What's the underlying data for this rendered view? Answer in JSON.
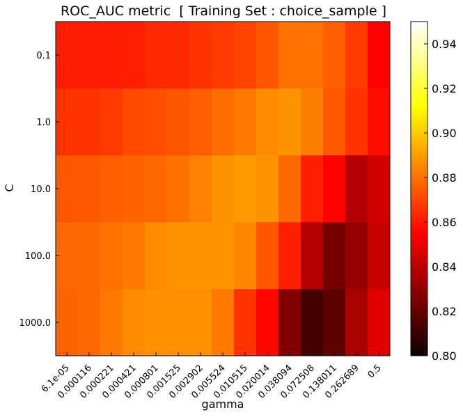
{
  "chart_data": {
    "type": "heatmap",
    "title": "ROC_AUC metric  [ Training Set : choice_sample ]",
    "xlabel": "gamma",
    "ylabel": "C",
    "x_categories": [
      "6.1e-05",
      "0.000116",
      "0.000221",
      "0.000421",
      "0.000801",
      "0.001525",
      "0.002902",
      "0.005524",
      "0.010515",
      "0.020014",
      "0.038094",
      "0.072508",
      "0.138011",
      "0.262689",
      "0.5"
    ],
    "y_categories": [
      "0.1",
      "1.0",
      "10.0",
      "100.0",
      "1000.0"
    ],
    "values": [
      [
        0.861,
        0.861,
        0.861,
        0.862,
        0.864,
        0.864,
        0.866,
        0.868,
        0.87,
        0.874,
        0.88,
        0.88,
        0.876,
        0.868,
        0.854
      ],
      [
        0.866,
        0.866,
        0.868,
        0.871,
        0.872,
        0.874,
        0.876,
        0.879,
        0.882,
        0.886,
        0.888,
        0.883,
        0.875,
        0.866,
        0.858
      ],
      [
        0.874,
        0.875,
        0.876,
        0.877,
        0.878,
        0.88,
        0.884,
        0.888,
        0.89,
        0.888,
        0.878,
        0.862,
        0.853,
        0.836,
        0.842
      ],
      [
        0.878,
        0.878,
        0.88,
        0.882,
        0.886,
        0.888,
        0.888,
        0.888,
        0.885,
        0.874,
        0.862,
        0.836,
        0.823,
        0.83,
        0.84
      ],
      [
        0.877,
        0.878,
        0.882,
        0.886,
        0.887,
        0.887,
        0.887,
        0.882,
        0.866,
        0.856,
        0.826,
        0.812,
        0.818,
        0.834,
        0.846
      ]
    ],
    "colormap": "hot",
    "colorbar": {
      "range": [
        0.8,
        0.95
      ],
      "ticks": [
        "0.80",
        "0.82",
        "0.84",
        "0.86",
        "0.88",
        "0.90",
        "0.92",
        "0.94"
      ]
    }
  }
}
